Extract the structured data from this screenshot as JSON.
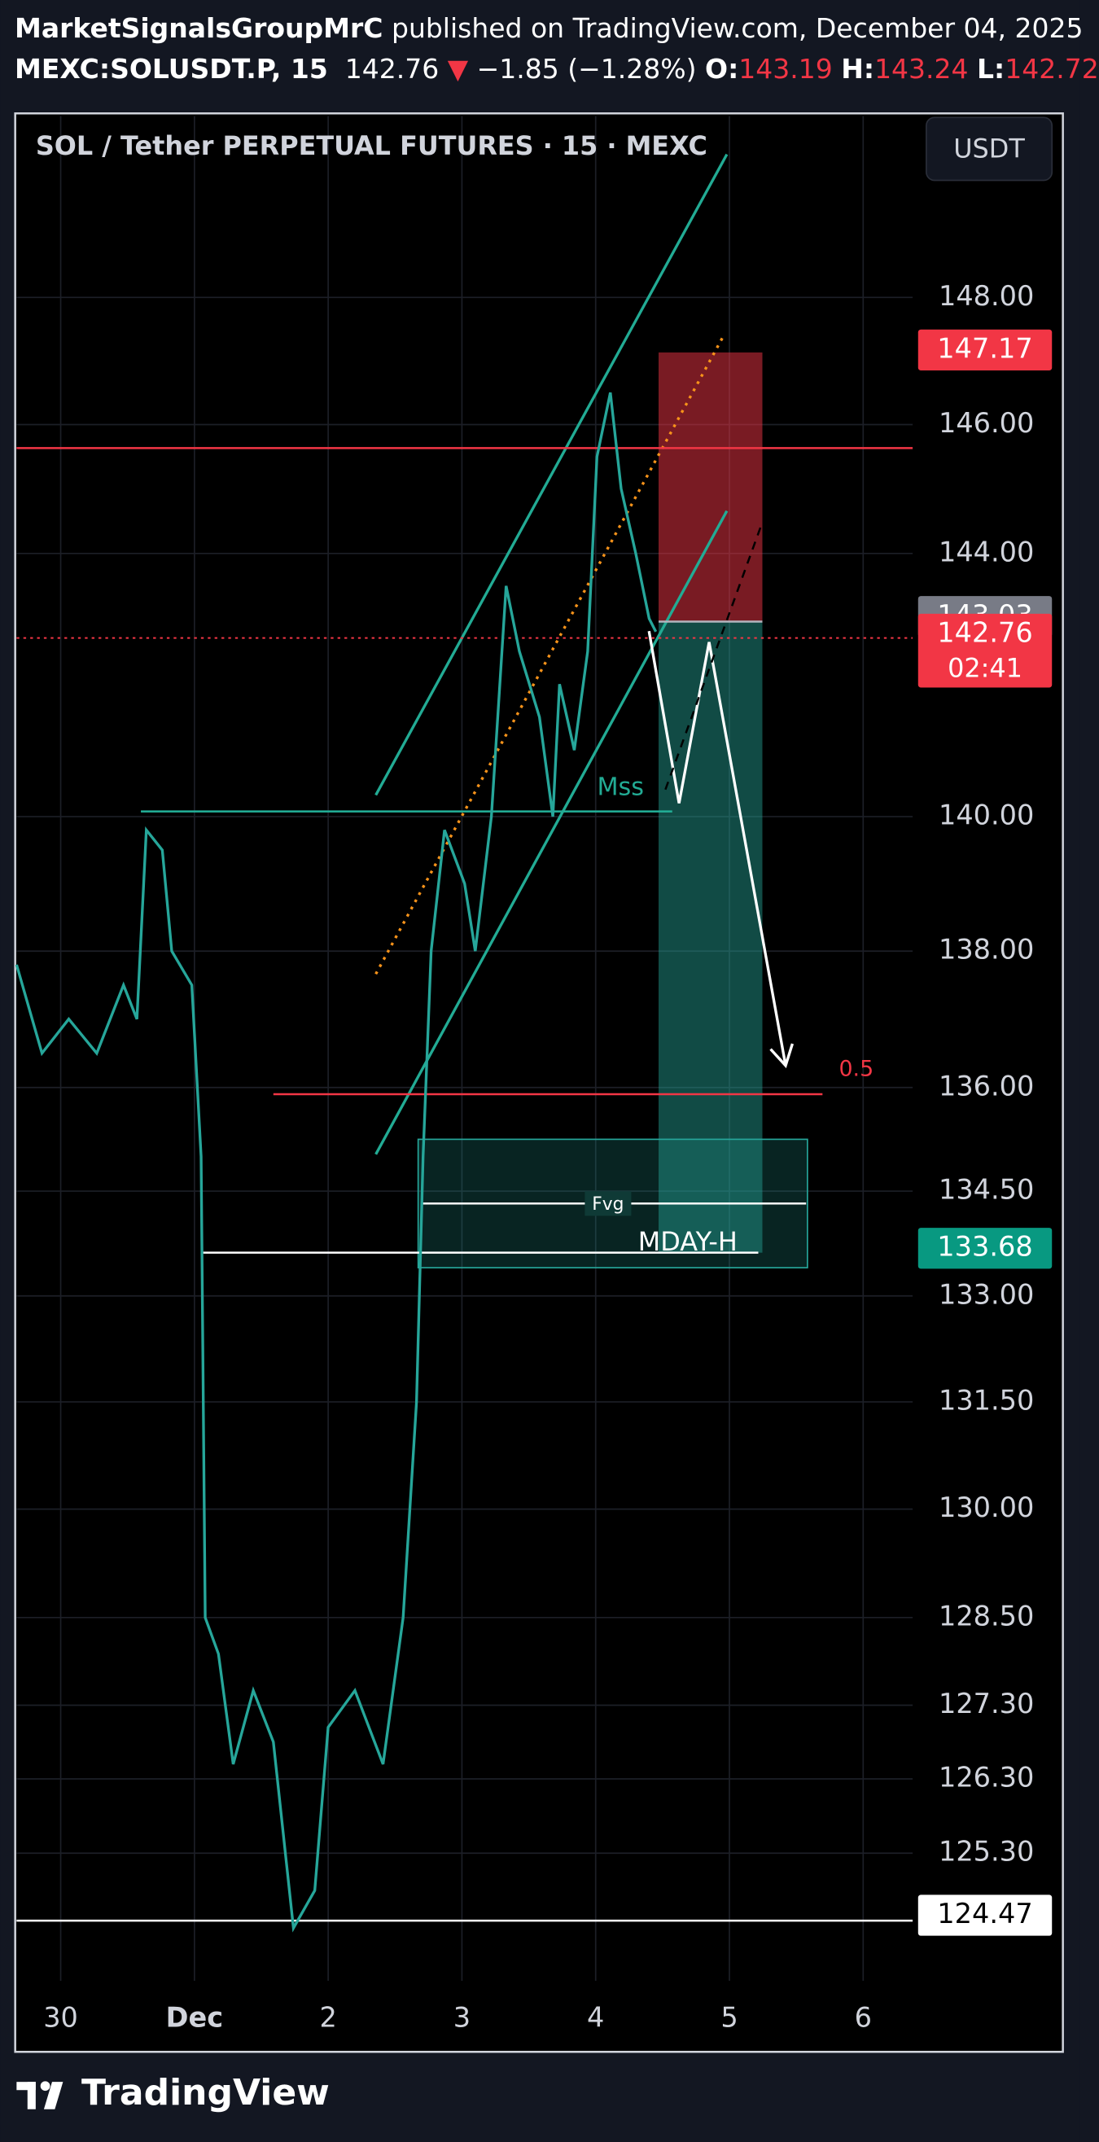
{
  "header": {
    "author": "MarketSignalsGroupMrC",
    "published": "published on TradingView.com, December 04, 2025",
    "symbol": "MEXC:SOLUSDT.P, 15",
    "price": "142.76",
    "arrow": "▼",
    "change": "−1.85 (−1.28%)",
    "o_label": "O:",
    "o": "143.19",
    "h_label": "H:",
    "h": "143.24",
    "l_label": "L:",
    "l": "142.72"
  },
  "chart_data": {
    "type": "line",
    "title": "SOL / Tether PERPETUAL FUTURES · 15 · MEXC",
    "currency": "USDT",
    "x": [
      -0.33,
      -0.14,
      0.06,
      0.27,
      0.47,
      0.57,
      0.64,
      0.76,
      0.83,
      0.98,
      1.05,
      1.08,
      1.18,
      1.29,
      1.44,
      1.59,
      1.74,
      1.9,
      2.0,
      2.2,
      2.41,
      2.56,
      2.66,
      2.71,
      2.77,
      2.87,
      3.02,
      3.1,
      3.22,
      3.33,
      3.43,
      3.58,
      3.68,
      3.73,
      3.84,
      3.94,
      4.01,
      4.11,
      4.19,
      4.3,
      4.4,
      4.45
    ],
    "values": [
      137.8,
      136.5,
      137,
      136.5,
      137.5,
      137,
      139.8,
      139.5,
      138,
      137.5,
      135,
      128.5,
      128,
      126.5,
      127.5,
      126.8,
      124.3,
      124.8,
      127,
      127.5,
      126.5,
      128.5,
      131.5,
      135,
      138,
      139.8,
      139,
      138,
      140,
      143.5,
      142.5,
      141.5,
      140,
      142,
      141,
      142.5,
      145.5,
      146.5,
      145,
      144,
      143,
      142.8
    ],
    "color": "#26a69a",
    "xlim": [
      -0.33,
      6.37
    ],
    "xticks": [
      {
        "value": 0,
        "label": "30"
      },
      {
        "value": 1,
        "label": "Dec"
      },
      2,
      3,
      4,
      5,
      6
    ],
    "ylim": [
      123.6,
      150.9
    ],
    "log_scale": true,
    "grid": true,
    "yticks": [
      {
        "value": 148,
        "label": "148.00"
      },
      {
        "value": 146,
        "label": "146.00"
      },
      {
        "value": 144,
        "label": "144.00"
      },
      {
        "value": 140,
        "label": "140.00"
      },
      {
        "value": 138,
        "label": "138.00"
      },
      {
        "value": 136,
        "label": "136.00"
      },
      {
        "value": 134.5,
        "label": "134.50"
      },
      {
        "value": 133,
        "label": "133.00"
      },
      {
        "value": 131.5,
        "label": "131.50"
      },
      {
        "value": 130,
        "label": "130.00"
      },
      {
        "value": 128.5,
        "label": "128.50"
      },
      {
        "value": 127.3,
        "label": "127.30"
      },
      {
        "value": 126.3,
        "label": "126.30"
      },
      {
        "value": 125.3,
        "label": "125.30"
      }
    ],
    "price_labels": [
      {
        "value": 147.17,
        "color": "#f23645",
        "text_color": "#ffffff"
      },
      {
        "value": 143.03,
        "color": "#787b86",
        "text_color": "#ffffff"
      },
      {
        "value": 142.76,
        "color": "#f23645",
        "text_color": "#ffffff",
        "countdown": "02:41"
      },
      {
        "value": 133.68,
        "color": "#089981",
        "text_color": "#ffffff"
      },
      {
        "value": 124.47,
        "color": "#ffffff",
        "text_color": "#000000"
      }
    ],
    "annotations": {
      "mss": "Mss",
      "fvg": "Fvg",
      "mday": "MDAY-H",
      "fib": "0.5"
    }
  },
  "footer": {
    "brand": "TradingView"
  }
}
